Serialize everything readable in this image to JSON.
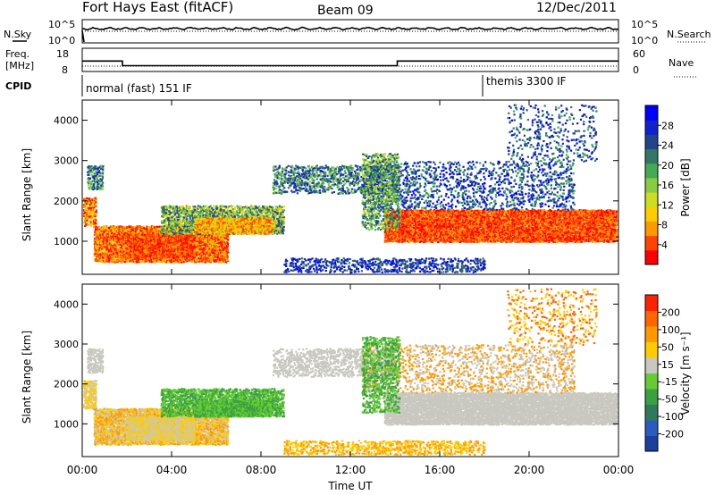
{
  "header": {
    "title": "Fort Hays East (fitACF)",
    "beam": "Beam 09",
    "date": "12/Dec/2011"
  },
  "noise_panel": {
    "left_label": "N.Sky",
    "right_label": "N.Search",
    "left_ticks": [
      "10^5",
      "10^0"
    ],
    "right_ticks": [
      "10^5",
      "10^0"
    ]
  },
  "freq_panel": {
    "left_label_1": "Freq.",
    "left_label_2": "[MHz]",
    "right_label": "Nave",
    "left_ticks": [
      "18",
      "8"
    ],
    "right_ticks": [
      "60",
      "0"
    ],
    "freq_steps": [
      {
        "time_h": 0,
        "mhz": 12.5
      },
      {
        "time_h": 1.8,
        "mhz": 10.5
      },
      {
        "time_h": 14.1,
        "mhz": 12.5
      }
    ]
  },
  "cpid": {
    "label": "CPID",
    "modes": [
      {
        "start_h": 0,
        "text": "normal (fast) 151 IF"
      },
      {
        "start_h": 18,
        "text": "themis 3300 IF"
      }
    ]
  },
  "power_panel": {
    "ylabel": "Slant Range [km]",
    "y_ticks": [
      "1000",
      "2000",
      "3000",
      "4000"
    ],
    "colorbar_label": "Power [dB]",
    "colorbar_ticks": [
      "28",
      "24",
      "20",
      "16",
      "12",
      "8",
      "4"
    ],
    "colors": [
      "#ff0000",
      "#ff4400",
      "#ff9900",
      "#ffcc00",
      "#ccdd22",
      "#88cc44",
      "#44aa55",
      "#337766",
      "#224488",
      "#1122cc",
      "#0000ff"
    ]
  },
  "velocity_panel": {
    "ylabel": "Slant Range [km]",
    "y_ticks": [
      "1000",
      "2000",
      "3000",
      "4000"
    ],
    "colorbar_label": "Velocity [m s⁻¹]",
    "colorbar_ticks": [
      "200",
      "100",
      "50",
      "15",
      "-15",
      "-50",
      "-100",
      "-200"
    ],
    "colors": [
      "#1c3fa0",
      "#2a5cc0",
      "#2f7a5a",
      "#3aa040",
      "#66cc33",
      "#c8c8c0",
      "#ffcc00",
      "#ff9900",
      "#ff6600",
      "#ff2200"
    ]
  },
  "x_axis": {
    "label": "Time UT",
    "ticks": [
      "00:00",
      "04:00",
      "08:00",
      "12:00",
      "16:00",
      "20:00",
      "00:00"
    ]
  }
}
